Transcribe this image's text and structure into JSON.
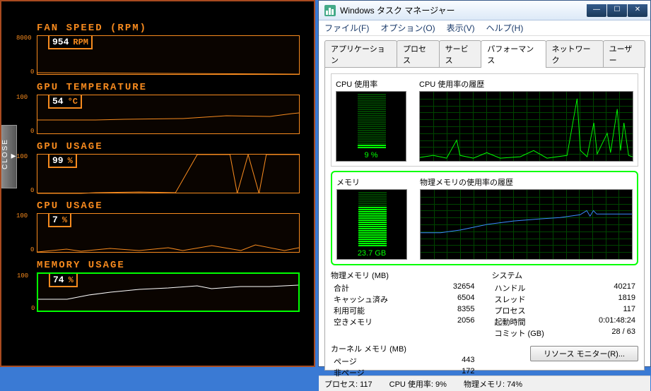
{
  "hw": {
    "metrics": [
      {
        "title": "FAN SPEED (RPM)",
        "value": "954",
        "unit": "RPM",
        "ytop": "8000",
        "ybot": "0",
        "highlight": false,
        "line": "M0,52 L360,54"
      },
      {
        "title": "GPU TEMPERATURE",
        "value": "54",
        "unit": "°C",
        "ytop": "100",
        "ybot": "0",
        "highlight": false,
        "line": "M0,35 L80,35 L120,34 L200,33 L260,29 L320,30 L350,26 L360,25"
      },
      {
        "title": "GPU USAGE",
        "value": "99",
        "unit": "%",
        "ytop": "100",
        "ybot": "0",
        "highlight": false,
        "line": "M0,55 L60,55 L80,54 L140,53 L190,54 L220,0 L265,0 L275,55 L290,0 L305,55 L315,0 L360,0"
      },
      {
        "title": "CPU USAGE",
        "value": "7",
        "unit": "%",
        "ytop": "100",
        "ybot": "0",
        "highlight": false,
        "line": "M0,54 L40,50 L60,53 L100,49 L140,52 L180,48 L200,52 L240,45 L280,52 L300,44 L340,52 L360,48"
      },
      {
        "title": "MEMORY USAGE",
        "value": "74",
        "unit": "%",
        "ytop": "100",
        "ybot": "0",
        "highlight": true,
        "line": "M0,36 L40,36 L70,30 L100,26 L140,22 L180,20 L220,17 L240,21 L280,18 L320,18 L360,16",
        "white": true
      }
    ],
    "close_label": "CLOSE"
  },
  "tm": {
    "title": "Windows タスク マネージャー",
    "menu": [
      "ファイル(F)",
      "オプション(O)",
      "表示(V)",
      "ヘルプ(H)"
    ],
    "tabs": [
      "アプリケーション",
      "プロセス",
      "サービス",
      "パフォーマンス",
      "ネットワーク",
      "ユーザー"
    ],
    "active_tab": 3,
    "cpu": {
      "gauge_label": "CPU 使用率",
      "hist_label": "CPU 使用率の履歴",
      "gauge_text": "9 %",
      "fill_pct": 9,
      "line": "M0,95 L20,92 L40,96 L55,70 L60,92 L80,96 L100,88 L120,96 L150,94 L170,85 L190,96 L220,92 L235,10 L240,85 L250,94 L260,45 L265,90 L280,60 L285,88 L295,25 L300,85 L305,45 L312,92 L318,94",
      "line_color": "#00ff00"
    },
    "mem": {
      "gauge_label": "メモリ",
      "hist_label": "物理メモリの使用率の履歴",
      "gauge_text": "23.7 GB",
      "fill_pct": 74,
      "highlight": true,
      "line": "M0,62 L30,62 L60,58 L100,50 L140,45 L180,42 L210,40 L240,36 L250,30 L255,38 L260,30 L265,35 L280,35 L318,35",
      "line_color": "#3a8aff"
    },
    "stats": {
      "phys_title": "物理メモリ (MB)",
      "phys": [
        {
          "l": "合計",
          "v": "32654"
        },
        {
          "l": "キャッシュ済み",
          "v": "6504"
        },
        {
          "l": "利用可能",
          "v": "8355"
        },
        {
          "l": "空きメモリ",
          "v": "2056"
        }
      ],
      "sys_title": "システム",
      "sys": [
        {
          "l": "ハンドル",
          "v": "40217"
        },
        {
          "l": "スレッド",
          "v": "1819"
        },
        {
          "l": "プロセス",
          "v": "117"
        },
        {
          "l": "起動時間",
          "v": "0:01:48:24"
        },
        {
          "l": "コミット (GB)",
          "v": "28 / 63"
        }
      ],
      "kernel_title": "カーネル メモリ (MB)",
      "kernel": [
        {
          "l": "ページ",
          "v": "443"
        },
        {
          "l": "非ページ",
          "v": "172"
        }
      ]
    },
    "res_btn": "リソース モニター(R)...",
    "status": {
      "proc": "プロセス: 117",
      "cpu": "CPU 使用率: 9%",
      "mem": "物理メモリ: 74%"
    }
  }
}
